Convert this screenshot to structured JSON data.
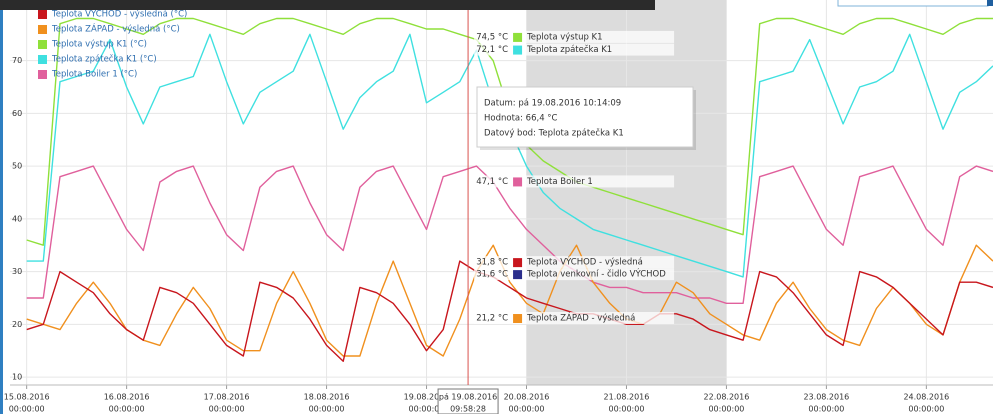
{
  "chart_data": {
    "type": "line",
    "legend": "top-left",
    "grid": true,
    "series": [
      {
        "name": "Teplota VÝCHOD - výsledná (°C)",
        "color": "#c8161d",
        "values": [
          19,
          20,
          30,
          28,
          26,
          22,
          19,
          17,
          27,
          26,
          24,
          20,
          16,
          14,
          28,
          27,
          25,
          21,
          16,
          13,
          27,
          26,
          24,
          20,
          15,
          19,
          32,
          30,
          29,
          27,
          25,
          24,
          23,
          22,
          22,
          21,
          20,
          20,
          22,
          22,
          21,
          19,
          18,
          17,
          30,
          29,
          26,
          22,
          18,
          16,
          30,
          29,
          27,
          24,
          21,
          18,
          28,
          28,
          27
        ]
      },
      {
        "name": "Teplota ZÁPAD - výsledná (°C)",
        "color": "#f0901e",
        "values": [
          21,
          20,
          19,
          24,
          28,
          24,
          19,
          17,
          16,
          22,
          27,
          23,
          17,
          15,
          15,
          24,
          30,
          24,
          17,
          14,
          14,
          24,
          32,
          24,
          16,
          14,
          21,
          30,
          35,
          28,
          24,
          22,
          30,
          35,
          28,
          24,
          21,
          20,
          22,
          28,
          26,
          22,
          20,
          18,
          17,
          24,
          28,
          23,
          19,
          17,
          16,
          23,
          27,
          24,
          20,
          18,
          28,
          35,
          32
        ]
      },
      {
        "name": "Teplota výstup K1 (°C)",
        "color": "#8fe03a",
        "values": [
          36,
          35,
          77,
          78,
          78,
          77,
          76,
          75,
          77,
          78,
          78,
          77,
          76,
          75,
          77,
          78,
          78,
          77,
          76,
          75,
          77,
          78,
          78,
          77,
          76,
          76,
          75,
          74,
          70,
          60,
          54,
          51,
          49,
          47,
          46,
          45,
          44,
          43,
          42,
          41,
          40,
          39,
          38,
          37,
          77,
          78,
          78,
          77,
          76,
          75,
          77,
          78,
          78,
          77,
          76,
          75,
          77,
          78,
          78
        ]
      },
      {
        "name": "Teplota zpátečka K1 (°C)",
        "color": "#3fe0e0",
        "values": [
          32,
          32,
          66,
          67,
          68,
          74,
          65,
          58,
          65,
          66,
          67,
          75,
          66,
          58,
          64,
          66,
          68,
          75,
          66,
          57,
          63,
          66,
          68,
          75,
          62,
          64,
          66,
          72,
          62,
          57,
          50,
          45,
          42,
          40,
          38,
          37,
          36,
          35,
          34,
          33,
          32,
          31,
          30,
          29,
          66,
          67,
          68,
          74,
          66,
          58,
          65,
          66,
          68,
          75,
          66,
          57,
          64,
          66,
          69
        ]
      },
      {
        "name": "Teplota Boiler 1 (°C)",
        "color": "#e0609c",
        "values": [
          25,
          25,
          48,
          49,
          50,
          44,
          38,
          34,
          47,
          49,
          50,
          43,
          37,
          34,
          46,
          49,
          50,
          43,
          37,
          34,
          46,
          49,
          50,
          44,
          38,
          48,
          49,
          50,
          47,
          42,
          38,
          35,
          32,
          30,
          28,
          27,
          27,
          26,
          26,
          26,
          25,
          25,
          24,
          24,
          48,
          49,
          50,
          44,
          38,
          35,
          48,
          49,
          50,
          44,
          38,
          35,
          48,
          50,
          49
        ]
      }
    ],
    "x": [
      "2016-08-15T00:00",
      "2016-08-15T04:00",
      "2016-08-15T08:00",
      "2016-08-15T12:00",
      "2016-08-15T16:00",
      "2016-08-15T20:00",
      "2016-08-16T00:00",
      "2016-08-16T04:00",
      "2016-08-16T08:00",
      "2016-08-16T12:00",
      "2016-08-16T16:00",
      "2016-08-16T20:00",
      "2016-08-17T00:00",
      "2016-08-17T04:00",
      "2016-08-17T08:00",
      "2016-08-17T12:00",
      "2016-08-17T16:00",
      "2016-08-17T20:00",
      "2016-08-18T00:00",
      "2016-08-18T04:00",
      "2016-08-18T08:00",
      "2016-08-18T12:00",
      "2016-08-18T16:00",
      "2016-08-18T20:00",
      "2016-08-19T00:00",
      "2016-08-19T04:00",
      "2016-08-19T08:00",
      "2016-08-19T12:00",
      "2016-08-19T16:00",
      "2016-08-19T20:00",
      "2016-08-20T00:00",
      "2016-08-20T04:00",
      "2016-08-20T08:00",
      "2016-08-20T12:00",
      "2016-08-20T16:00",
      "2016-08-20T20:00",
      "2016-08-21T00:00",
      "2016-08-21T04:00",
      "2016-08-21T08:00",
      "2016-08-21T12:00",
      "2016-08-21T16:00",
      "2016-08-21T20:00",
      "2016-08-22T00:00",
      "2016-08-22T04:00",
      "2016-08-22T08:00",
      "2016-08-22T12:00",
      "2016-08-22T16:00",
      "2016-08-22T20:00",
      "2016-08-23T00:00",
      "2016-08-23T04:00",
      "2016-08-23T08:00",
      "2016-08-23T12:00",
      "2016-08-23T16:00",
      "2016-08-23T20:00",
      "2016-08-24T00:00",
      "2016-08-24T04:00",
      "2016-08-24T08:00",
      "2016-08-24T12:00",
      "2016-08-24T16:00"
    ],
    "xlim": [
      "2016-08-14T20:00",
      "2016-08-24T16:00"
    ],
    "xticks": [
      {
        "value": "2016-08-15T00:00",
        "label": "15.08.2016"
      },
      {
        "value": "2016-08-16T00:00",
        "label": "16.08.2016"
      },
      {
        "value": "2016-08-17T00:00",
        "label": "17.08.2016"
      },
      {
        "value": "2016-08-18T00:00",
        "label": "18.08.2016"
      },
      {
        "value": "2016-08-19T00:00",
        "label": "19.08.2016"
      },
      {
        "value": "2016-08-20T00:00",
        "label": "20.08.2016"
      },
      {
        "value": "2016-08-21T00:00",
        "label": "21.08.2016"
      },
      {
        "value": "2016-08-22T00:00",
        "label": "22.08.2016"
      },
      {
        "value": "2016-08-23T00:00",
        "label": "23.08.2016"
      },
      {
        "value": "2016-08-24T00:00",
        "label": "24.08.2016"
      }
    ],
    "xtick_sublabels": [
      "00:00:00",
      "00:00:00",
      "00:00:00",
      "00:00:00",
      "00:00:00",
      "00:00:00",
      "00:00:00",
      "00:00:00",
      "00:00:00",
      "00:00:00"
    ],
    "ylim": [
      8.5,
      81.5
    ],
    "yticks": [
      10,
      20,
      30,
      40,
      50,
      60,
      70
    ],
    "shaded_ranges": [
      [
        "2016-08-20T00:00",
        "2016-08-22T00:00"
      ]
    ],
    "crosshair": {
      "x": "2016-08-19T09:58:28",
      "x_labels": [
        "pá 19.08.2016",
        "09:58:28"
      ],
      "items": [
        {
          "name": "Teplota výstup K1",
          "color": "#8fe03a",
          "value": 74.5,
          "value_label": "74,5 °C"
        },
        {
          "name": "Teplota zpátečka K1",
          "color": "#3fe0e0",
          "value": 72.1,
          "value_label": "72,1 °C"
        },
        {
          "name": "Teplota Boiler 1",
          "color": "#e0609c",
          "value": 47.1,
          "value_label": "47,1 °C"
        },
        {
          "name": "Teplota VÝCHOD - výsledná",
          "color": "#c8161d",
          "value": 31.8,
          "value_label": "31,8 °C"
        },
        {
          "name": "Teplota venkovní - čidlo VÝCHOD",
          "color": "#2b2e8c",
          "value": 31.6,
          "value_label": "31,6 °C"
        },
        {
          "name": "Teplota ZÁPAD - výsledná",
          "color": "#f0901e",
          "value": 21.2,
          "value_label": "21,2 °C"
        }
      ]
    },
    "tooltip": [
      "Datum: pá 19.08.2016 10:14:09",
      "Hodnota: 66,4 °C",
      "Datový bod: Teplota zpátečka K1"
    ]
  }
}
